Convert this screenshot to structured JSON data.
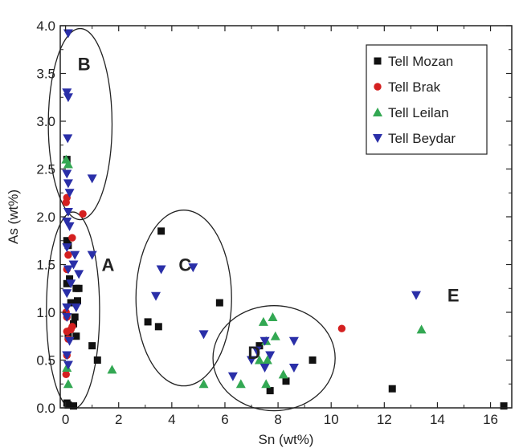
{
  "chart_data": {
    "type": "scatter",
    "xlabel": "Sn (wt%)",
    "ylabel": "As (wt%)",
    "xlim": [
      -0.2,
      16.8
    ],
    "ylim": [
      0,
      4.0
    ],
    "xticks": [
      0,
      2,
      4,
      6,
      8,
      10,
      12,
      14,
      16
    ],
    "yticks": [
      0.0,
      0.5,
      1.0,
      1.5,
      2.0,
      2.5,
      3.0,
      3.5,
      4.0
    ],
    "xtick_labels": [
      "0",
      "2",
      "4",
      "6",
      "8",
      "10",
      "12",
      "14",
      "16"
    ],
    "ytick_labels": [
      "0.0",
      "0.5",
      "1.0",
      "1.5",
      "2.0",
      "2.5",
      "3.0",
      "3.5",
      "4.0"
    ],
    "grid": false,
    "legend_position": "top-right",
    "series": [
      {
        "name": "Tell Mozan",
        "marker": "square",
        "color": "#111111",
        "points": [
          [
            0.05,
            2.6
          ],
          [
            0.05,
            1.75
          ],
          [
            0.1,
            1.7
          ],
          [
            0.05,
            1.3
          ],
          [
            0.15,
            1.35
          ],
          [
            0.2,
            1.1
          ],
          [
            0.4,
            1.25
          ],
          [
            0.5,
            1.25
          ],
          [
            0.45,
            1.12
          ],
          [
            0.35,
            0.95
          ],
          [
            0.3,
            0.88
          ],
          [
            0.4,
            0.75
          ],
          [
            0.1,
            0.75
          ],
          [
            1.0,
            0.65
          ],
          [
            1.2,
            0.5
          ],
          [
            0.05,
            0.05
          ],
          [
            0.1,
            0.03
          ],
          [
            0.3,
            0.02
          ],
          [
            3.6,
            1.85
          ],
          [
            3.1,
            0.9
          ],
          [
            3.5,
            0.85
          ],
          [
            5.8,
            1.1
          ],
          [
            7.3,
            0.65
          ],
          [
            8.3,
            0.28
          ],
          [
            7.7,
            0.18
          ],
          [
            9.3,
            0.5
          ],
          [
            12.3,
            0.2
          ],
          [
            16.5,
            0.02
          ]
        ]
      },
      {
        "name": "Tell Brak",
        "marker": "circle",
        "color": "#d42020",
        "points": [
          [
            0.05,
            2.2
          ],
          [
            0.02,
            2.15
          ],
          [
            0.65,
            2.03
          ],
          [
            0.25,
            1.78
          ],
          [
            0.1,
            1.6
          ],
          [
            0.05,
            1.45
          ],
          [
            0.02,
            1.0
          ],
          [
            0.05,
            0.95
          ],
          [
            0.05,
            0.8
          ],
          [
            0.2,
            0.82
          ],
          [
            0.25,
            0.85
          ],
          [
            0.1,
            0.72
          ],
          [
            0.05,
            0.55
          ],
          [
            0.02,
            0.35
          ],
          [
            10.4,
            0.83
          ]
        ]
      },
      {
        "name": "Tell Leilan",
        "marker": "triangle-up",
        "color": "#33a853",
        "points": [
          [
            0.02,
            2.6
          ],
          [
            0.1,
            2.55
          ],
          [
            0.05,
            0.42
          ],
          [
            0.1,
            0.25
          ],
          [
            1.75,
            0.4
          ],
          [
            5.2,
            0.25
          ],
          [
            6.6,
            0.25
          ],
          [
            7.45,
            0.9
          ],
          [
            7.8,
            0.95
          ],
          [
            7.55,
            0.7
          ],
          [
            7.9,
            0.75
          ],
          [
            7.3,
            0.5
          ],
          [
            7.6,
            0.5
          ],
          [
            8.2,
            0.35
          ],
          [
            7.55,
            0.25
          ],
          [
            13.4,
            0.82
          ]
        ]
      },
      {
        "name": "Tell Beydar",
        "marker": "triangle-down",
        "color": "#2a2fa8",
        "points": [
          [
            0.1,
            3.92
          ],
          [
            0.05,
            3.3
          ],
          [
            0.1,
            3.25
          ],
          [
            0.08,
            2.82
          ],
          [
            0.05,
            2.45
          ],
          [
            0.1,
            2.35
          ],
          [
            0.15,
            2.25
          ],
          [
            1.0,
            2.4
          ],
          [
            0.1,
            2.05
          ],
          [
            0.05,
            1.95
          ],
          [
            0.15,
            1.9
          ],
          [
            0.05,
            1.68
          ],
          [
            0.35,
            1.6
          ],
          [
            1.0,
            1.6
          ],
          [
            0.3,
            1.5
          ],
          [
            0.1,
            1.45
          ],
          [
            0.5,
            1.4
          ],
          [
            0.2,
            1.3
          ],
          [
            0.05,
            1.2
          ],
          [
            0.05,
            1.05
          ],
          [
            0.4,
            1.05
          ],
          [
            0.05,
            0.95
          ],
          [
            0.15,
            0.7
          ],
          [
            0.05,
            0.55
          ],
          [
            0.1,
            0.45
          ],
          [
            3.6,
            1.45
          ],
          [
            3.4,
            1.17
          ],
          [
            4.8,
            1.47
          ],
          [
            5.2,
            0.77
          ],
          [
            6.3,
            0.33
          ],
          [
            7.0,
            0.5
          ],
          [
            7.5,
            0.7
          ],
          [
            7.2,
            0.6
          ],
          [
            7.7,
            0.55
          ],
          [
            8.6,
            0.7
          ],
          [
            8.6,
            0.42
          ],
          [
            7.5,
            0.42
          ],
          [
            13.2,
            1.18
          ]
        ]
      }
    ],
    "annotations": [
      {
        "text": "A",
        "x": 1.6,
        "y": 1.5
      },
      {
        "text": "B",
        "x": 0.7,
        "y": 3.6
      },
      {
        "text": "C",
        "x": 4.5,
        "y": 1.5
      },
      {
        "text": "D",
        "x": 7.1,
        "y": 0.58
      },
      {
        "text": "E",
        "x": 14.6,
        "y": 1.18
      }
    ],
    "ellipses": [
      {
        "label": "A",
        "cx": 0.28,
        "cy": 1.02,
        "rx": 1.0,
        "ry": 1.03
      },
      {
        "label": "B",
        "cx": 0.55,
        "cy": 2.97,
        "rx": 1.2,
        "ry": 1.0
      },
      {
        "label": "C",
        "cx": 4.45,
        "cy": 1.15,
        "rx": 1.8,
        "ry": 0.92
      },
      {
        "label": "D",
        "cx": 7.85,
        "cy": 0.52,
        "rx": 2.3,
        "ry": 0.55
      }
    ]
  }
}
